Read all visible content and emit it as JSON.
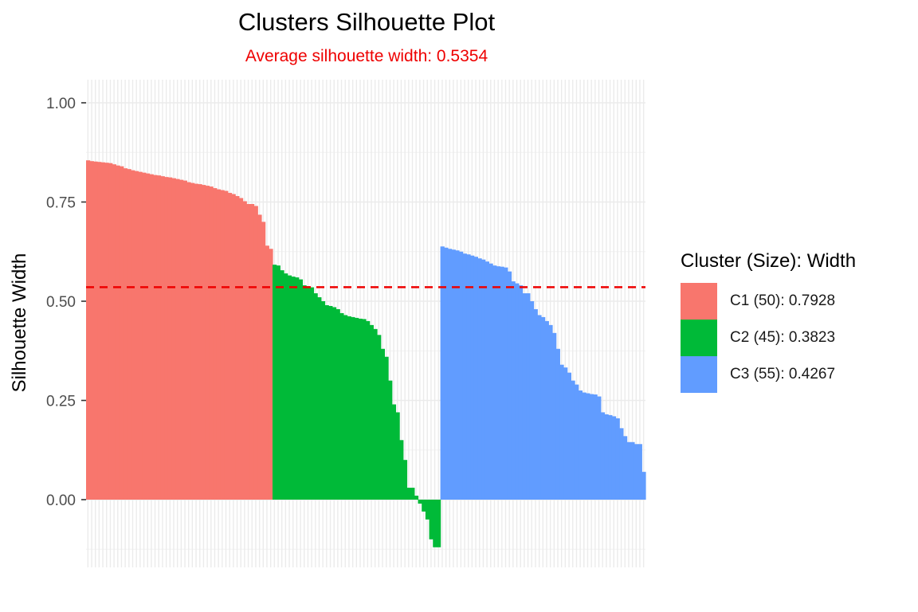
{
  "chart_data": {
    "type": "bar",
    "title": "Clusters Silhouette Plot",
    "subtitle": "Average silhouette width: 0.5354",
    "xlabel": "",
    "ylabel": "Silhouette Width",
    "ylim": [
      -0.15,
      1.05
    ],
    "yticks": [
      0.0,
      0.25,
      0.5,
      0.75,
      1.0
    ],
    "ytick_labels": [
      "0.00",
      "0.25",
      "0.50",
      "0.75",
      "1.00"
    ],
    "grid": true,
    "legend_position": "right",
    "legend_title": "Cluster (Size): Width",
    "reference_line": {
      "value": 0.5354,
      "style": "dashed",
      "color": "#ee0000"
    },
    "series": [
      {
        "name": "C1 (50): 0.7928",
        "color": "#F8766D",
        "values": [
          0.855,
          0.853,
          0.852,
          0.851,
          0.85,
          0.849,
          0.848,
          0.845,
          0.842,
          0.84,
          0.835,
          0.833,
          0.83,
          0.828,
          0.826,
          0.824,
          0.822,
          0.82,
          0.818,
          0.817,
          0.815,
          0.813,
          0.812,
          0.81,
          0.808,
          0.806,
          0.804,
          0.8,
          0.798,
          0.796,
          0.795,
          0.793,
          0.791,
          0.789,
          0.785,
          0.782,
          0.78,
          0.778,
          0.773,
          0.77,
          0.765,
          0.76,
          0.752,
          0.745,
          0.745,
          0.74,
          0.718,
          0.7,
          0.64,
          0.632
        ]
      },
      {
        "name": "C2 (45): 0.3823",
        "color": "#00BA38",
        "values": [
          0.592,
          0.59,
          0.578,
          0.57,
          0.565,
          0.562,
          0.56,
          0.555,
          0.54,
          0.538,
          0.535,
          0.52,
          0.51,
          0.5,
          0.49,
          0.488,
          0.485,
          0.48,
          0.47,
          0.465,
          0.462,
          0.46,
          0.458,
          0.456,
          0.455,
          0.45,
          0.44,
          0.43,
          0.415,
          0.38,
          0.36,
          0.3,
          0.24,
          0.22,
          0.15,
          0.1,
          0.03,
          0.03,
          0.01,
          -0.01,
          -0.03,
          -0.05,
          -0.1,
          -0.12,
          -0.12
        ]
      },
      {
        "name": "C3 (55): 0.4267",
        "color": "#619CFF",
        "values": [
          0.638,
          0.635,
          0.632,
          0.63,
          0.628,
          0.625,
          0.62,
          0.618,
          0.615,
          0.612,
          0.608,
          0.605,
          0.6,
          0.595,
          0.59,
          0.588,
          0.587,
          0.585,
          0.575,
          0.55,
          0.545,
          0.54,
          0.52,
          0.52,
          0.5,
          0.48,
          0.465,
          0.46,
          0.45,
          0.44,
          0.42,
          0.38,
          0.34,
          0.333,
          0.32,
          0.3,
          0.29,
          0.275,
          0.27,
          0.268,
          0.266,
          0.265,
          0.26,
          0.22,
          0.215,
          0.213,
          0.21,
          0.205,
          0.18,
          0.16,
          0.145,
          0.145,
          0.14,
          0.14,
          0.07
        ]
      }
    ]
  }
}
